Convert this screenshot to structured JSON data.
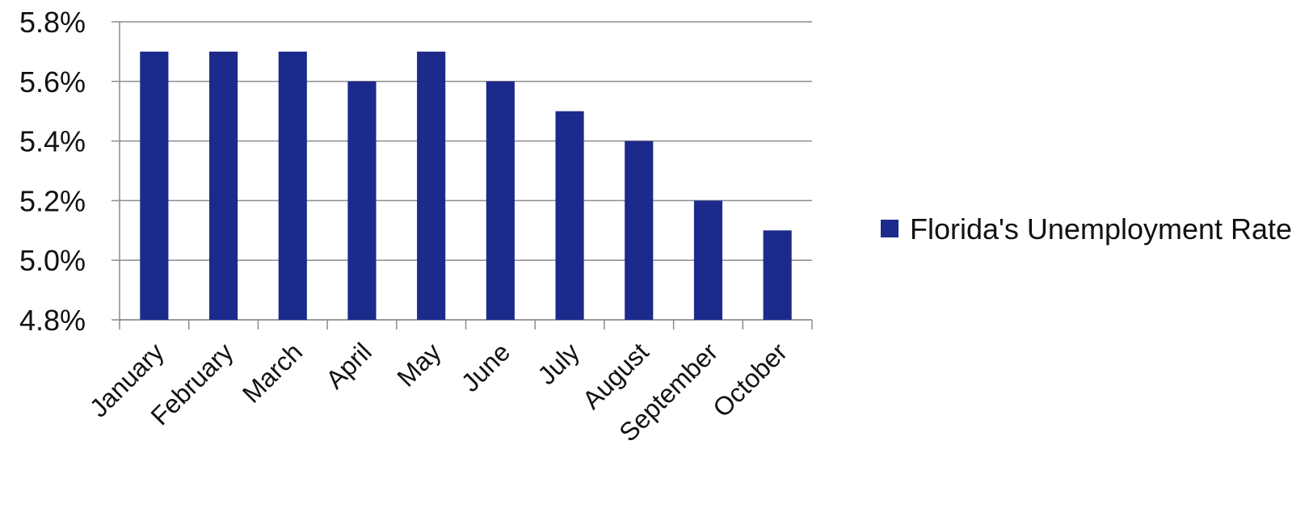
{
  "chart_data": {
    "type": "bar",
    "categories": [
      "January",
      "February",
      "March",
      "April",
      "May",
      "June",
      "July",
      "August",
      "September",
      "October"
    ],
    "series": [
      {
        "name": "Florida's Unemployment Rate",
        "values": [
          5.7,
          5.7,
          5.7,
          5.6,
          5.7,
          5.6,
          5.5,
          5.4,
          5.2,
          5.1
        ],
        "color": "#1c2a8c"
      }
    ],
    "ylim": [
      4.8,
      5.8
    ],
    "yticks": [
      "4.8%",
      "5.0%",
      "5.2%",
      "5.4%",
      "5.6%",
      "5.8%"
    ],
    "ytick_values": [
      4.8,
      5.0,
      5.2,
      5.4,
      5.6,
      5.8
    ],
    "grid": true,
    "legend_position": "right"
  }
}
